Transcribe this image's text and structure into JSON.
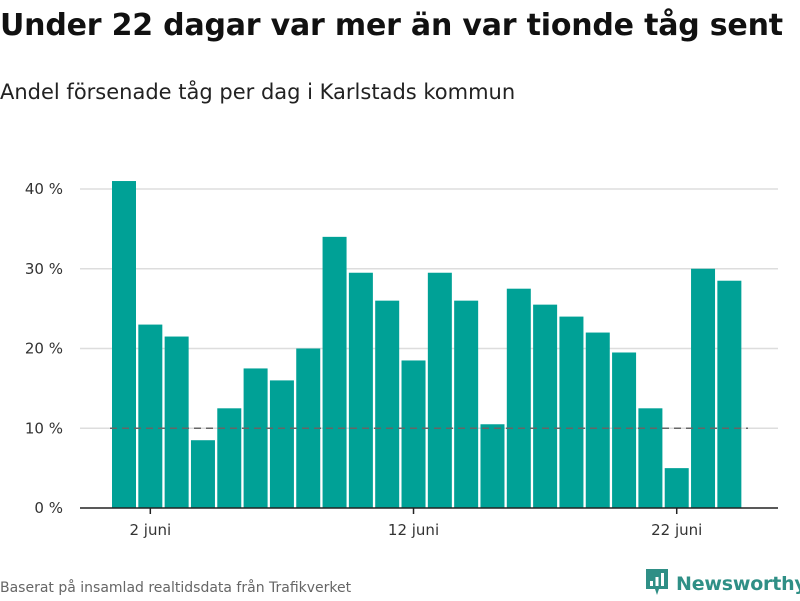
{
  "header": {
    "title": "Under 22 dagar var mer än var tionde tåg sent",
    "subtitle": "Andel försenade tåg per dag i Karlstads kommun"
  },
  "footer": {
    "source": "Baserat på insamlad realtidsdata från Trafikverket",
    "brand": "Newsworthy"
  },
  "colors": {
    "bar": "#00a196",
    "grid": "#dddddd",
    "reference_line": "#666666",
    "axis": "#222222",
    "brand": "#2f8f86"
  },
  "brand_icon": "newsworthy-logo-icon",
  "chart_data": {
    "type": "bar",
    "title": "Under 22 dagar var mer än var tionde tåg sent",
    "subtitle": "Andel försenade tåg per dag i Karlstads kommun",
    "xlabel": "",
    "ylabel": "",
    "x_unit": "day of June",
    "categories": [
      1,
      2,
      3,
      4,
      5,
      6,
      7,
      8,
      9,
      10,
      11,
      12,
      13,
      14,
      15,
      16,
      17,
      18,
      19,
      20,
      21,
      22,
      23,
      24
    ],
    "values": [
      41,
      23,
      21.5,
      8.5,
      12.5,
      17.5,
      16,
      20,
      34,
      29.5,
      26,
      18.5,
      29.5,
      26,
      10.5,
      27.5,
      25.5,
      24,
      22,
      19.5,
      12.5,
      5,
      30,
      28.5
    ],
    "x_ticks": [
      {
        "x": 2,
        "label": "2 juni"
      },
      {
        "x": 12,
        "label": "12 juni"
      },
      {
        "x": 22,
        "label": "22 juni"
      }
    ],
    "y_ticks": [
      {
        "value": 0,
        "label": "0 %"
      },
      {
        "value": 10,
        "label": "10 %"
      },
      {
        "value": 20,
        "label": "20 %"
      },
      {
        "value": 30,
        "label": "30 %"
      },
      {
        "value": 40,
        "label": "40 %"
      }
    ],
    "ylim": [
      0,
      40
    ],
    "xlim": [
      0.1,
      25
    ],
    "reference_line": {
      "value": 10,
      "style": "dashed"
    },
    "grid": "horizontal",
    "legend": "none"
  }
}
